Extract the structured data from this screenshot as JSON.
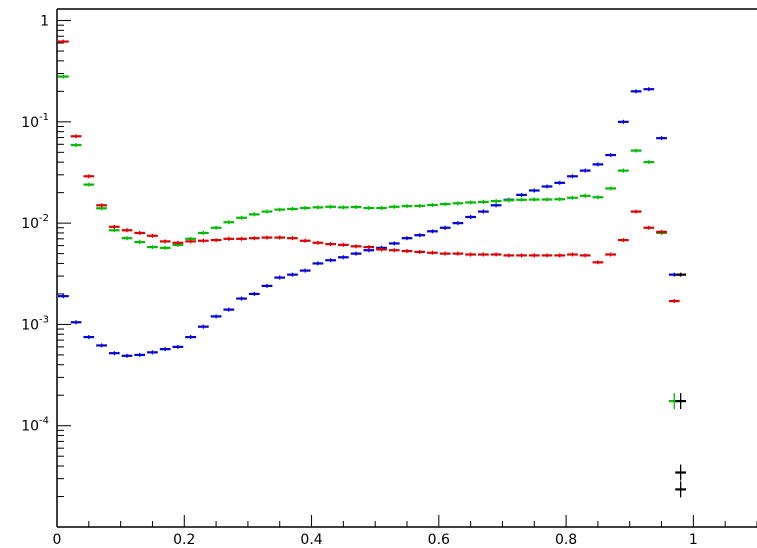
{
  "chart_data": {
    "type": "scatter",
    "title": "",
    "xlabel": "",
    "ylabel": "",
    "xlim": [
      0,
      1.1
    ],
    "ylim": [
      1e-05,
      1.3
    ],
    "yscale": "log",
    "grid": false,
    "legend": "none",
    "x_ticks": [
      {
        "value": 0,
        "label": "0"
      },
      {
        "value": 0.2,
        "label": "0.2"
      },
      {
        "value": 0.4,
        "label": "0.4"
      },
      {
        "value": 0.6,
        "label": "0.6"
      },
      {
        "value": 0.8,
        "label": "0.8"
      },
      {
        "value": 1,
        "label": "1"
      }
    ],
    "y_ticks": [
      {
        "value": 1,
        "base": "1",
        "exp": ""
      },
      {
        "value": 0.1,
        "base": "10",
        "exp": "-1"
      },
      {
        "value": 0.01,
        "base": "10",
        "exp": "-2"
      },
      {
        "value": 0.001,
        "base": "10",
        "exp": "-3"
      },
      {
        "value": 0.0001,
        "base": "10",
        "exp": "-4"
      }
    ],
    "series": [
      {
        "color": "#0000dd",
        "x": [
          0.01,
          0.03,
          0.05,
          0.07,
          0.09,
          0.11,
          0.13,
          0.15,
          0.17,
          0.19,
          0.21,
          0.23,
          0.25,
          0.27,
          0.29,
          0.31,
          0.33,
          0.35,
          0.37,
          0.39,
          0.41,
          0.43,
          0.45,
          0.47,
          0.49,
          0.51,
          0.53,
          0.55,
          0.57,
          0.59,
          0.61,
          0.63,
          0.65,
          0.67,
          0.69,
          0.71,
          0.73,
          0.75,
          0.77,
          0.79,
          0.81,
          0.83,
          0.85,
          0.87,
          0.89,
          0.91,
          0.93,
          0.95,
          0.97
        ],
        "y": [
          0.0019,
          0.00105,
          0.00075,
          0.00062,
          0.00052,
          0.00049,
          0.0005,
          0.00053,
          0.00057,
          0.0006,
          0.00075,
          0.00095,
          0.0012,
          0.0014,
          0.0018,
          0.002,
          0.0024,
          0.0029,
          0.0031,
          0.0034,
          0.004,
          0.0043,
          0.0046,
          0.005,
          0.0054,
          0.0057,
          0.0063,
          0.0071,
          0.0076,
          0.0083,
          0.009,
          0.01,
          0.0115,
          0.013,
          0.015,
          0.017,
          0.019,
          0.021,
          0.023,
          0.025,
          0.029,
          0.033,
          0.038,
          0.047,
          0.1,
          0.2,
          0.21,
          0.069,
          0.0031
        ]
      },
      {
        "color": "#00bb00",
        "x": [
          0.01,
          0.03,
          0.05,
          0.07,
          0.09,
          0.11,
          0.13,
          0.15,
          0.17,
          0.19,
          0.21,
          0.23,
          0.25,
          0.27,
          0.29,
          0.31,
          0.33,
          0.35,
          0.37,
          0.39,
          0.41,
          0.43,
          0.45,
          0.47,
          0.49,
          0.51,
          0.53,
          0.55,
          0.57,
          0.59,
          0.61,
          0.63,
          0.65,
          0.67,
          0.69,
          0.71,
          0.73,
          0.75,
          0.77,
          0.79,
          0.81,
          0.83,
          0.85,
          0.87,
          0.89,
          0.91,
          0.93,
          0.95,
          0.97
        ],
        "y": [
          0.28,
          0.059,
          0.024,
          0.014,
          0.0085,
          0.0071,
          0.0065,
          0.0058,
          0.0057,
          0.0061,
          0.007,
          0.008,
          0.009,
          0.0102,
          0.0113,
          0.0122,
          0.013,
          0.0136,
          0.0138,
          0.0141,
          0.0143,
          0.0145,
          0.0143,
          0.0144,
          0.0141,
          0.0141,
          0.0145,
          0.0147,
          0.0148,
          0.0151,
          0.0154,
          0.0157,
          0.016,
          0.0162,
          0.0165,
          0.0168,
          0.017,
          0.0171,
          0.0171,
          0.0172,
          0.0178,
          0.0186,
          0.018,
          0.022,
          0.033,
          0.052,
          0.04,
          0.008,
          0.000175
        ]
      },
      {
        "color": "#dd0000",
        "x": [
          0.01,
          0.03,
          0.05,
          0.07,
          0.09,
          0.11,
          0.13,
          0.15,
          0.17,
          0.19,
          0.21,
          0.23,
          0.25,
          0.27,
          0.29,
          0.31,
          0.33,
          0.35,
          0.37,
          0.39,
          0.41,
          0.43,
          0.45,
          0.47,
          0.49,
          0.51,
          0.53,
          0.55,
          0.57,
          0.59,
          0.61,
          0.63,
          0.65,
          0.67,
          0.69,
          0.71,
          0.73,
          0.75,
          0.77,
          0.79,
          0.81,
          0.83,
          0.85,
          0.87,
          0.89,
          0.91,
          0.93,
          0.95,
          0.97
        ],
        "y": [
          0.62,
          0.072,
          0.029,
          0.015,
          0.0092,
          0.0085,
          0.008,
          0.0075,
          0.0066,
          0.0064,
          0.0066,
          0.0067,
          0.0068,
          0.007,
          0.007,
          0.0071,
          0.0072,
          0.0072,
          0.0071,
          0.0067,
          0.0064,
          0.0062,
          0.0061,
          0.0059,
          0.0058,
          0.0055,
          0.0054,
          0.0053,
          0.0052,
          0.0051,
          0.005,
          0.005,
          0.0049,
          0.0049,
          0.0049,
          0.0048,
          0.0048,
          0.0048,
          0.0048,
          0.0048,
          0.0049,
          0.0048,
          0.0041,
          0.0049,
          0.0068,
          0.013,
          0.009,
          0.0082,
          0.0017
        ]
      },
      {
        "color": "#000000",
        "x": [
          0.98,
          0.98,
          0.98,
          0.98
        ],
        "y": [
          0.000175,
          3.45e-05,
          2.35e-05,
          0.0031
        ]
      }
    ]
  }
}
